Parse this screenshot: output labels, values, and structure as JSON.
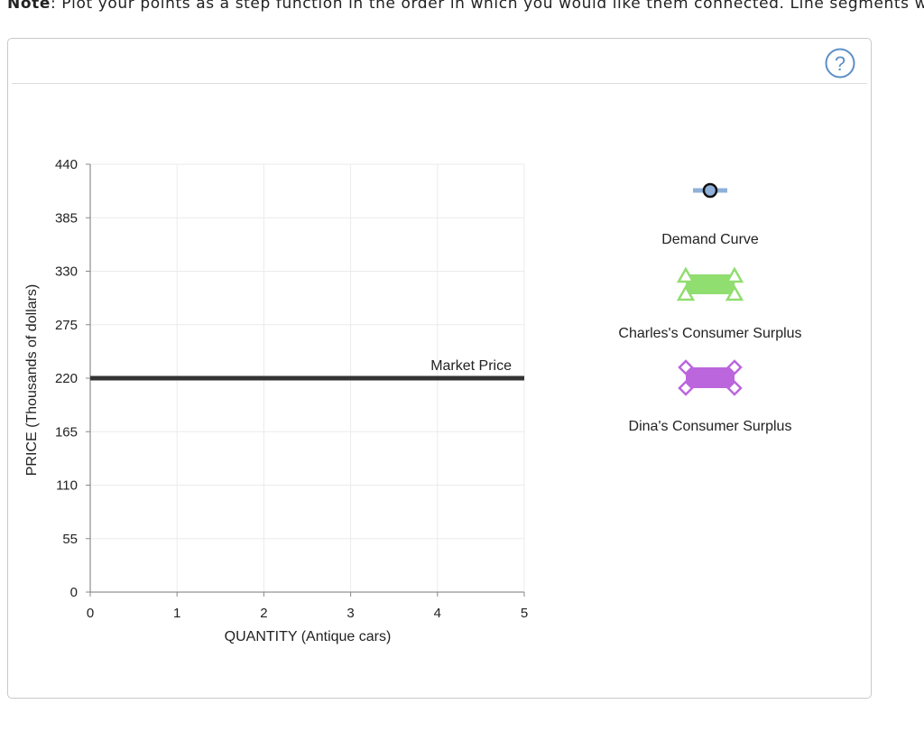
{
  "note": {
    "label": "Note",
    "text": ": Plot your points as a step function in the order in which you would like them connected. Line segments wil"
  },
  "help": {
    "icon": "question-mark-icon",
    "color": "#5b8fc7"
  },
  "chart_data": {
    "type": "line",
    "ylabel": "PRICE (Thousands of dollars)",
    "xlabel": "QUANTITY (Antique cars)",
    "xlim": [
      0,
      5
    ],
    "ylim": [
      0,
      440
    ],
    "x_ticks": [
      "0",
      "1",
      "2",
      "3",
      "4",
      "5"
    ],
    "y_ticks": [
      "0",
      "55",
      "110",
      "165",
      "220",
      "275",
      "330",
      "385",
      "440"
    ],
    "grid": true,
    "market_price": {
      "label": "Market Price",
      "value": 220,
      "color": "#333333"
    }
  },
  "palette": {
    "tools": [
      {
        "name": "demand-curve-tool",
        "label": "Demand Curve",
        "icon": "circle-marker-icon",
        "color": "#8fb0d8"
      },
      {
        "name": "charles-surplus-tool",
        "label": "Charles's Consumer Surplus",
        "icon": "green-triangle-polygon-icon",
        "color": "#90dd70"
      },
      {
        "name": "dina-surplus-tool",
        "label": "Dina's Consumer Surplus",
        "icon": "purple-diamond-polygon-icon",
        "color": "#bb66dd"
      }
    ]
  }
}
